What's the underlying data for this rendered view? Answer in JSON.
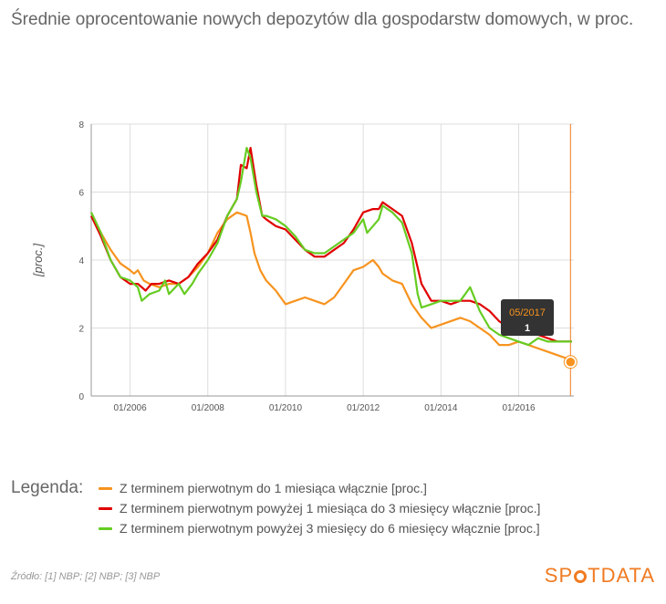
{
  "title": "Średnie oprocentowanie nowych depozytów dla gospodarstw domowych, w proc.",
  "legend_heading": "Legenda:",
  "source": "Źródło: [1] NBP; [2] NBP; [3] NBP",
  "brand": {
    "before": "SP",
    "after": "TDATA"
  },
  "tooltip": {
    "date": "05/2017",
    "value": "1"
  },
  "colors": {
    "orange": "#f7931e",
    "red": "#e00000",
    "green": "#66cc22",
    "axis": "#999999",
    "grid": "#dddddd",
    "accent": "#f07b22"
  },
  "chart_data": {
    "type": "line",
    "ylabel": "[proc.]",
    "xlabel": "",
    "ylim": [
      0,
      8
    ],
    "yticks": [
      "0",
      "2",
      "4",
      "6",
      "8"
    ],
    "xticks": [
      "01/2006",
      "01/2008",
      "01/2010",
      "01/2012",
      "01/2014",
      "01/2016"
    ],
    "x_start": "01/2005",
    "x_end": "05/2017",
    "grid": true,
    "highlight": {
      "x": "05/2017",
      "value": 1
    },
    "series": [
      {
        "name": "Z terminem pierwotnym do 1 miesiąca włącznie [proc.]",
        "color": "#f7931e",
        "points": [
          [
            2005.0,
            5.4
          ],
          [
            2005.25,
            4.8
          ],
          [
            2005.5,
            4.3
          ],
          [
            2005.75,
            3.9
          ],
          [
            2006.0,
            3.7
          ],
          [
            2006.1,
            3.6
          ],
          [
            2006.2,
            3.7
          ],
          [
            2006.35,
            3.4
          ],
          [
            2006.5,
            3.3
          ],
          [
            2006.75,
            3.2
          ],
          [
            2007.0,
            3.3
          ],
          [
            2007.25,
            3.3
          ],
          [
            2007.5,
            3.5
          ],
          [
            2007.75,
            3.8
          ],
          [
            2008.0,
            4.2
          ],
          [
            2008.25,
            4.8
          ],
          [
            2008.5,
            5.2
          ],
          [
            2008.75,
            5.4
          ],
          [
            2009.0,
            5.3
          ],
          [
            2009.1,
            4.8
          ],
          [
            2009.2,
            4.2
          ],
          [
            2009.35,
            3.7
          ],
          [
            2009.5,
            3.4
          ],
          [
            2009.75,
            3.1
          ],
          [
            2010.0,
            2.7
          ],
          [
            2010.25,
            2.8
          ],
          [
            2010.5,
            2.9
          ],
          [
            2010.75,
            2.8
          ],
          [
            2011.0,
            2.7
          ],
          [
            2011.25,
            2.9
          ],
          [
            2011.5,
            3.3
          ],
          [
            2011.75,
            3.7
          ],
          [
            2012.0,
            3.8
          ],
          [
            2012.25,
            4.0
          ],
          [
            2012.4,
            3.8
          ],
          [
            2012.5,
            3.6
          ],
          [
            2012.75,
            3.4
          ],
          [
            2013.0,
            3.3
          ],
          [
            2013.25,
            2.7
          ],
          [
            2013.5,
            2.3
          ],
          [
            2013.75,
            2.0
          ],
          [
            2014.0,
            2.1
          ],
          [
            2014.25,
            2.2
          ],
          [
            2014.5,
            2.3
          ],
          [
            2014.75,
            2.2
          ],
          [
            2015.0,
            2.0
          ],
          [
            2015.25,
            1.8
          ],
          [
            2015.5,
            1.5
          ],
          [
            2015.75,
            1.5
          ],
          [
            2016.0,
            1.6
          ],
          [
            2016.25,
            1.5
          ],
          [
            2016.5,
            1.4
          ],
          [
            2016.75,
            1.3
          ],
          [
            2017.0,
            1.2
          ],
          [
            2017.25,
            1.1
          ],
          [
            2017.37,
            1.0
          ]
        ]
      },
      {
        "name": "Z terminem pierwotnym powyżej 1 miesiąca do 3 miesięcy włącznie [proc.]",
        "color": "#e00000",
        "points": [
          [
            2005.0,
            5.3
          ],
          [
            2005.25,
            4.7
          ],
          [
            2005.5,
            4.0
          ],
          [
            2005.75,
            3.5
          ],
          [
            2006.0,
            3.3
          ],
          [
            2006.2,
            3.3
          ],
          [
            2006.4,
            3.1
          ],
          [
            2006.55,
            3.3
          ],
          [
            2006.75,
            3.3
          ],
          [
            2007.0,
            3.4
          ],
          [
            2007.25,
            3.3
          ],
          [
            2007.5,
            3.5
          ],
          [
            2007.75,
            3.9
          ],
          [
            2008.0,
            4.2
          ],
          [
            2008.25,
            4.6
          ],
          [
            2008.5,
            5.3
          ],
          [
            2008.75,
            5.8
          ],
          [
            2008.85,
            6.8
          ],
          [
            2009.0,
            6.7
          ],
          [
            2009.1,
            7.3
          ],
          [
            2009.25,
            6.2
          ],
          [
            2009.4,
            5.3
          ],
          [
            2009.5,
            5.2
          ],
          [
            2009.75,
            5.0
          ],
          [
            2010.0,
            4.9
          ],
          [
            2010.25,
            4.6
          ],
          [
            2010.5,
            4.3
          ],
          [
            2010.75,
            4.1
          ],
          [
            2011.0,
            4.1
          ],
          [
            2011.25,
            4.3
          ],
          [
            2011.5,
            4.5
          ],
          [
            2011.75,
            4.9
          ],
          [
            2012.0,
            5.4
          ],
          [
            2012.25,
            5.5
          ],
          [
            2012.4,
            5.5
          ],
          [
            2012.5,
            5.7
          ],
          [
            2012.75,
            5.5
          ],
          [
            2013.0,
            5.3
          ],
          [
            2013.25,
            4.5
          ],
          [
            2013.5,
            3.3
          ],
          [
            2013.75,
            2.8
          ],
          [
            2014.0,
            2.8
          ],
          [
            2014.25,
            2.7
          ],
          [
            2014.5,
            2.8
          ],
          [
            2014.75,
            2.8
          ],
          [
            2015.0,
            2.7
          ],
          [
            2015.25,
            2.5
          ],
          [
            2015.5,
            2.2
          ],
          [
            2015.75,
            2.0
          ],
          [
            2016.0,
            2.0
          ],
          [
            2016.25,
            1.9
          ],
          [
            2016.5,
            1.8
          ],
          [
            2016.75,
            1.7
          ],
          [
            2017.0,
            1.6
          ],
          [
            2017.25,
            1.6
          ],
          [
            2017.37,
            1.6
          ]
        ]
      },
      {
        "name": "Z terminem pierwotnym powyżej 3 miesięcy do 6 miesięcy włącznie [proc.]",
        "color": "#66cc22",
        "points": [
          [
            2005.0,
            5.4
          ],
          [
            2005.25,
            4.8
          ],
          [
            2005.5,
            4.0
          ],
          [
            2005.75,
            3.5
          ],
          [
            2006.0,
            3.4
          ],
          [
            2006.2,
            3.2
          ],
          [
            2006.3,
            2.8
          ],
          [
            2006.5,
            3.0
          ],
          [
            2006.75,
            3.1
          ],
          [
            2006.9,
            3.4
          ],
          [
            2007.0,
            3.0
          ],
          [
            2007.25,
            3.3
          ],
          [
            2007.4,
            3.0
          ],
          [
            2007.6,
            3.3
          ],
          [
            2007.75,
            3.6
          ],
          [
            2008.0,
            4.0
          ],
          [
            2008.25,
            4.5
          ],
          [
            2008.5,
            5.3
          ],
          [
            2008.75,
            5.8
          ],
          [
            2008.85,
            6.3
          ],
          [
            2009.0,
            7.3
          ],
          [
            2009.1,
            7.0
          ],
          [
            2009.25,
            6.0
          ],
          [
            2009.4,
            5.3
          ],
          [
            2009.5,
            5.3
          ],
          [
            2009.75,
            5.2
          ],
          [
            2010.0,
            5.0
          ],
          [
            2010.25,
            4.7
          ],
          [
            2010.5,
            4.3
          ],
          [
            2010.75,
            4.2
          ],
          [
            2011.0,
            4.2
          ],
          [
            2011.25,
            4.4
          ],
          [
            2011.5,
            4.6
          ],
          [
            2011.75,
            4.8
          ],
          [
            2012.0,
            5.2
          ],
          [
            2012.1,
            4.8
          ],
          [
            2012.25,
            5.0
          ],
          [
            2012.4,
            5.2
          ],
          [
            2012.5,
            5.6
          ],
          [
            2012.75,
            5.4
          ],
          [
            2013.0,
            5.1
          ],
          [
            2013.25,
            4.2
          ],
          [
            2013.4,
            3.0
          ],
          [
            2013.5,
            2.6
          ],
          [
            2013.75,
            2.7
          ],
          [
            2014.0,
            2.8
          ],
          [
            2014.25,
            2.8
          ],
          [
            2014.5,
            2.8
          ],
          [
            2014.75,
            3.2
          ],
          [
            2015.0,
            2.5
          ],
          [
            2015.25,
            2.0
          ],
          [
            2015.5,
            1.8
          ],
          [
            2015.75,
            1.7
          ],
          [
            2016.0,
            1.6
          ],
          [
            2016.25,
            1.5
          ],
          [
            2016.5,
            1.7
          ],
          [
            2016.75,
            1.6
          ],
          [
            2017.0,
            1.6
          ],
          [
            2017.25,
            1.6
          ],
          [
            2017.37,
            1.6
          ]
        ]
      }
    ]
  }
}
